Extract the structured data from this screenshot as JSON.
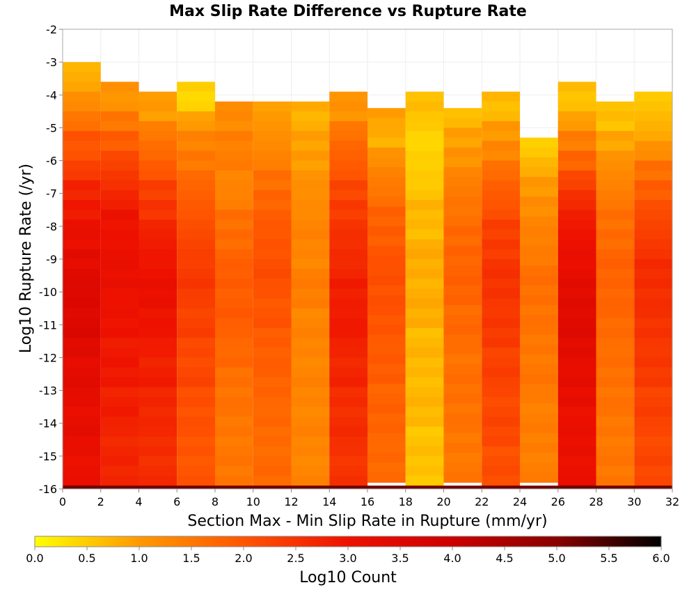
{
  "chart_data": {
    "type": "heatmap",
    "title": "Max Slip Rate Difference vs Rupture Rate",
    "xlabel": "Section Max - Min Slip Rate in Rupture (mm/yr)",
    "ylabel": "Log10 Rupture Rate (/yr)",
    "xlim": [
      0,
      32
    ],
    "ylim": [
      -16,
      -2
    ],
    "x_ticks": [
      "0",
      "2",
      "4",
      "6",
      "8",
      "10",
      "12",
      "14",
      "16",
      "18",
      "20",
      "22",
      "24",
      "26",
      "28",
      "30",
      "32"
    ],
    "y_ticks": [
      "-2",
      "-3",
      "-4",
      "-5",
      "-6",
      "-7",
      "-8",
      "-9",
      "-10",
      "-11",
      "-12",
      "-13",
      "-14",
      "-15",
      "-16"
    ],
    "x_bin_width": 2,
    "y_bin_height": 0.3,
    "columns": [
      {
        "x": 1,
        "top": -3.0,
        "profile": [
          0.8,
          1.2,
          1.6,
          2.0,
          2.4,
          2.7,
          2.9,
          3.1,
          3.3,
          3.4,
          3.5,
          3.5,
          3.4,
          3.3,
          3.3,
          3.2,
          3.2,
          3.1,
          3.1
        ]
      },
      {
        "x": 3,
        "top": -3.6,
        "profile": [
          1.1,
          1.5,
          1.9,
          2.2,
          2.5,
          2.8,
          3.0,
          3.1,
          3.1,
          3.1,
          3.0,
          3.0,
          2.9,
          2.9,
          2.8,
          2.8,
          2.7,
          2.7,
          2.7
        ]
      },
      {
        "x": 5,
        "top": -3.9,
        "profile": [
          1.0,
          1.4,
          1.7,
          2.0,
          2.3,
          2.5,
          2.7,
          2.9,
          3.0,
          3.1,
          3.0,
          2.9,
          2.8,
          2.8,
          2.7,
          2.7,
          2.6,
          2.6,
          2.6
        ]
      },
      {
        "x": 7,
        "top": -3.6,
        "profile": [
          0.4,
          1.0,
          1.3,
          1.5,
          1.7,
          1.9,
          2.1,
          2.3,
          2.4,
          2.4,
          2.3,
          2.3,
          2.2,
          2.2,
          2.1,
          2.1,
          2.0,
          2.0,
          2.0
        ]
      },
      {
        "x": 9,
        "top": -4.2,
        "profile": [
          1.2,
          1.4,
          1.4,
          1.3,
          1.4,
          1.6,
          1.7,
          1.8,
          1.9,
          1.9,
          1.9,
          1.8,
          1.7,
          1.6,
          1.6,
          1.5,
          1.5,
          1.5,
          1.5
        ]
      },
      {
        "x": 11,
        "top": -4.2,
        "profile": [
          1.0,
          1.2,
          1.4,
          1.6,
          1.8,
          1.9,
          2.0,
          2.1,
          2.1,
          2.0,
          2.0,
          1.9,
          1.9,
          1.8,
          1.8,
          1.7,
          1.7,
          1.7,
          1.7
        ]
      },
      {
        "x": 13,
        "top": -4.2,
        "profile": [
          0.8,
          0.9,
          1.0,
          1.1,
          1.2,
          1.3,
          1.3,
          1.3,
          1.4,
          1.4,
          1.3,
          1.3,
          1.3,
          1.3,
          1.3,
          1.3,
          1.3,
          1.3,
          1.3
        ]
      },
      {
        "x": 15,
        "top": -3.9,
        "profile": [
          1.1,
          1.5,
          1.8,
          2.0,
          2.2,
          2.4,
          2.5,
          2.6,
          2.7,
          2.8,
          2.9,
          2.8,
          2.7,
          2.7,
          2.6,
          2.6,
          2.6,
          2.5,
          2.5
        ]
      },
      {
        "x": 17,
        "top": -4.4,
        "profile": [
          0.9,
          0.8,
          1.1,
          1.4,
          1.6,
          1.8,
          1.9,
          2.0,
          2.1,
          2.1,
          2.0,
          2.0,
          1.9,
          1.9,
          1.8,
          1.8,
          1.8,
          1.7,
          1.7
        ]
      },
      {
        "x": 19,
        "top": -3.9,
        "profile": [
          0.6,
          0.5,
          0.4,
          0.5,
          0.6,
          0.7,
          0.7,
          0.8,
          0.8,
          0.8,
          0.8,
          0.7,
          0.7,
          0.7,
          0.7,
          0.7,
          0.6,
          0.6,
          0.6
        ]
      },
      {
        "x": 21,
        "top": -4.4,
        "profile": [
          0.7,
          0.9,
          1.1,
          1.3,
          1.5,
          1.6,
          1.7,
          1.8,
          1.8,
          1.8,
          1.7,
          1.7,
          1.6,
          1.6,
          1.6,
          1.6,
          1.5,
          1.5,
          1.5
        ]
      },
      {
        "x": 23,
        "top": -3.9,
        "profile": [
          0.7,
          1.0,
          1.3,
          1.6,
          1.9,
          2.1,
          2.3,
          2.4,
          2.5,
          2.5,
          2.4,
          2.4,
          2.3,
          2.3,
          2.2,
          2.2,
          2.2,
          2.1,
          2.1
        ]
      },
      {
        "x": 25,
        "top": -5.3,
        "profile": [
          0.5,
          0.8,
          1.0,
          1.2,
          1.3,
          1.4,
          1.5,
          1.6,
          1.6,
          1.6,
          1.5,
          1.5,
          1.5,
          1.5,
          1.4,
          1.4,
          1.4,
          1.4,
          1.4
        ]
      },
      {
        "x": 27,
        "top": -3.6,
        "profile": [
          0.6,
          1.0,
          1.4,
          1.8,
          2.2,
          2.6,
          2.9,
          3.1,
          3.2,
          3.3,
          3.4,
          3.4,
          3.3,
          3.2,
          3.2,
          3.1,
          3.1,
          3.1,
          3.1
        ]
      },
      {
        "x": 29,
        "top": -4.2,
        "profile": [
          0.6,
          0.9,
          1.1,
          1.3,
          1.5,
          1.6,
          1.7,
          1.8,
          1.8,
          1.8,
          1.7,
          1.7,
          1.6,
          1.6,
          1.6,
          1.5,
          1.5,
          1.5,
          1.5
        ]
      },
      {
        "x": 31,
        "top": -3.9,
        "profile": [
          0.6,
          0.8,
          1.2,
          1.6,
          1.9,
          2.1,
          2.3,
          2.5,
          2.6,
          2.6,
          2.5,
          2.5,
          2.4,
          2.4,
          2.3,
          2.3,
          2.2,
          2.2,
          2.2
        ]
      }
    ],
    "bottom_row": {
      "y_range": [
        -16,
        -15.9
      ],
      "value": 5.2
    },
    "colorbar": {
      "label": "Log10 Count",
      "min": 0.0,
      "max": 6.0,
      "ticks": [
        "0.0",
        "0.5",
        "1.0",
        "1.5",
        "2.0",
        "2.5",
        "3.0",
        "3.5",
        "4.0",
        "4.5",
        "5.0",
        "5.5",
        "6.0"
      ],
      "colors": [
        "#ffff00",
        "#ff9900",
        "#ff5500",
        "#ee1100",
        "#cc0000",
        "#880000",
        "#000000"
      ]
    },
    "grid": true
  }
}
